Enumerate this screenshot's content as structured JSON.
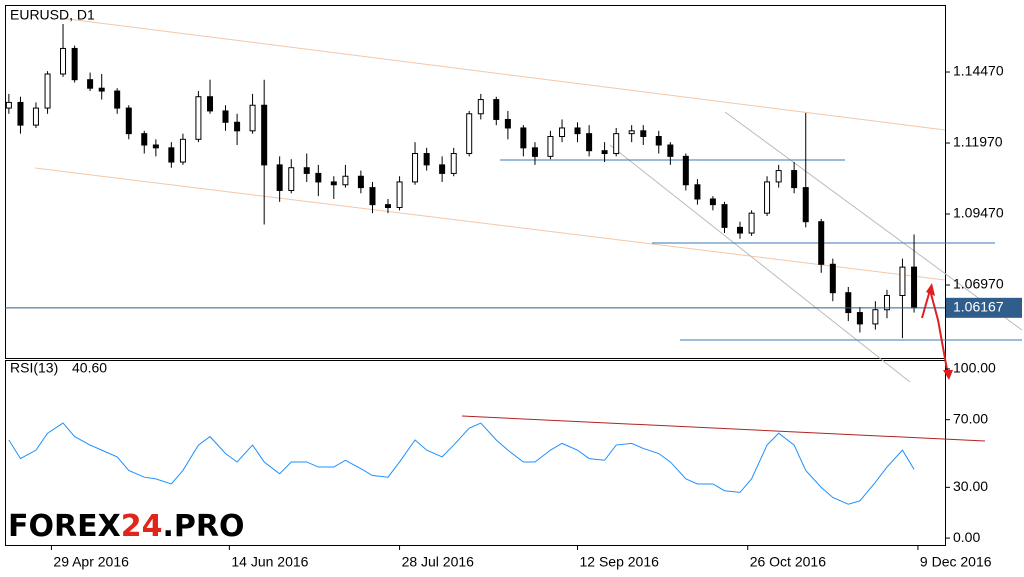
{
  "chart_data": [
    {
      "type": "candlestick",
      "title": "EURUSD, D1",
      "x": [
        "18 Apr 2016",
        "21 Apr 2016",
        "25 Apr 2016",
        "28 Apr 2016",
        "2 May 2016",
        "5 May 2016",
        "9 May 2016",
        "12 May 2016",
        "16 May 2016",
        "19 May 2016",
        "23 May 2016",
        "26 May 2016",
        "30 May 2016",
        "2 Jun 2016",
        "6 Jun 2016",
        "9 Jun 2016",
        "13 Jun 2016",
        "16 Jun 2016",
        "20 Jun 2016",
        "23 Jun 2016",
        "27 Jun 2016",
        "30 Jun 2016",
        "4 Jul 2016",
        "7 Jul 2016",
        "11 Jul 2016",
        "14 Jul 2016",
        "18 Jul 2016",
        "21 Jul 2016",
        "25 Jul 2016",
        "28 Jul 2016",
        "1 Aug 2016",
        "4 Aug 2016",
        "8 Aug 2016",
        "11 Aug 2016",
        "15 Aug 2016",
        "18 Aug 2016",
        "22 Aug 2016",
        "25 Aug 2016",
        "29 Aug 2016",
        "1 Sep 2016",
        "5 Sep 2016",
        "8 Sep 2016",
        "12 Sep 2016",
        "15 Sep 2016",
        "19 Sep 2016",
        "22 Sep 2016",
        "26 Sep 2016",
        "29 Sep 2016",
        "3 Oct 2016",
        "6 Oct 2016",
        "10 Oct 2016",
        "13 Oct 2016",
        "17 Oct 2016",
        "20 Oct 2016",
        "24 Oct 2016",
        "27 Oct 2016",
        "31 Oct 2016",
        "3 Nov 2016",
        "7 Nov 2016",
        "10 Nov 2016",
        "14 Nov 2016",
        "17 Nov 2016",
        "21 Nov 2016",
        "24 Nov 2016",
        "28 Nov 2016",
        "1 Dec 2016",
        "5 Dec 2016",
        "8 Dec 2016"
      ],
      "open": [
        1.132,
        1.134,
        1.126,
        1.132,
        1.144,
        1.153,
        1.142,
        1.139,
        1.138,
        1.132,
        1.123,
        1.119,
        1.118,
        1.113,
        1.121,
        1.136,
        1.131,
        1.127,
        1.124,
        1.133,
        1.112,
        1.103,
        1.111,
        1.109,
        1.106,
        1.105,
        1.108,
        1.104,
        1.098,
        1.097,
        1.106,
        1.116,
        1.112,
        1.109,
        1.116,
        1.13,
        1.135,
        1.128,
        1.125,
        1.118,
        1.115,
        1.122,
        1.125,
        1.123,
        1.117,
        1.116,
        1.123,
        1.124,
        1.122,
        1.119,
        1.115,
        1.105,
        1.1,
        1.098,
        1.09,
        1.088,
        1.095,
        1.106,
        1.11,
        1.104,
        1.092,
        1.077,
        1.067,
        1.06,
        1.056,
        1.061,
        1.066,
        1.076
      ],
      "high": [
        1.137,
        1.136,
        1.134,
        1.145,
        1.1616,
        1.154,
        1.1445,
        1.144,
        1.139,
        1.133,
        1.124,
        1.121,
        1.12,
        1.123,
        1.138,
        1.142,
        1.133,
        1.13,
        1.137,
        1.142,
        1.115,
        1.114,
        1.116,
        1.112,
        1.108,
        1.112,
        1.11,
        1.106,
        1.1,
        1.108,
        1.12,
        1.118,
        1.115,
        1.118,
        1.131,
        1.137,
        1.136,
        1.131,
        1.126,
        1.12,
        1.124,
        1.128,
        1.127,
        1.126,
        1.12,
        1.125,
        1.126,
        1.126,
        1.124,
        1.12,
        1.116,
        1.107,
        1.101,
        1.099,
        1.092,
        1.096,
        1.108,
        1.112,
        1.113,
        1.1303,
        1.093,
        1.079,
        1.069,
        1.062,
        1.064,
        1.068,
        1.079,
        1.0875
      ],
      "low": [
        1.13,
        1.123,
        1.125,
        1.13,
        1.143,
        1.141,
        1.138,
        1.135,
        1.13,
        1.121,
        1.116,
        1.115,
        1.111,
        1.112,
        1.12,
        1.13,
        1.124,
        1.119,
        1.123,
        1.091,
        1.099,
        1.102,
        1.106,
        1.101,
        1.1,
        1.104,
        1.102,
        1.095,
        1.095,
        1.096,
        1.105,
        1.11,
        1.106,
        1.108,
        1.115,
        1.128,
        1.126,
        1.121,
        1.115,
        1.112,
        1.114,
        1.12,
        1.12,
        1.115,
        1.113,
        1.115,
        1.12,
        1.119,
        1.116,
        1.112,
        1.103,
        1.098,
        1.096,
        1.088,
        1.086,
        1.087,
        1.094,
        1.104,
        1.102,
        1.09,
        1.074,
        1.064,
        1.057,
        1.053,
        1.054,
        1.058,
        1.051,
        1.06
      ],
      "close": [
        1.134,
        1.126,
        1.132,
        1.144,
        1.153,
        1.142,
        1.139,
        1.138,
        1.132,
        1.123,
        1.119,
        1.118,
        1.113,
        1.121,
        1.136,
        1.131,
        1.127,
        1.124,
        1.133,
        1.112,
        1.103,
        1.111,
        1.109,
        1.106,
        1.105,
        1.108,
        1.104,
        1.098,
        1.097,
        1.106,
        1.116,
        1.112,
        1.109,
        1.116,
        1.13,
        1.135,
        1.128,
        1.125,
        1.118,
        1.115,
        1.122,
        1.125,
        1.123,
        1.117,
        1.116,
        1.123,
        1.124,
        1.122,
        1.119,
        1.115,
        1.105,
        1.1,
        1.098,
        1.09,
        1.088,
        1.095,
        1.106,
        1.11,
        1.104,
        1.092,
        1.077,
        1.067,
        1.06,
        1.056,
        1.061,
        1.066,
        1.076,
        1.0617
      ],
      "xlim": [
        "17 Apr 2016",
        "16 Dec 2016"
      ],
      "ylim": [
        1.044,
        1.1683
      ],
      "yticks": [
        {
          "value": 1.1447,
          "label": "1.14470"
        },
        {
          "value": 1.1197,
          "label": "1.11970"
        },
        {
          "value": 1.0947,
          "label": "1.09470"
        },
        {
          "value": 1.0697,
          "label": "1.06970"
        }
      ],
      "last_price": {
        "value": 1.06167,
        "label": "1.06167"
      }
    },
    {
      "type": "line",
      "title": "RSI(13)",
      "last_label": "40.60",
      "color": "#1e90ff",
      "x": [
        "18 Apr 2016",
        "21 Apr 2016",
        "25 Apr 2016",
        "28 Apr 2016",
        "2 May 2016",
        "5 May 2016",
        "9 May 2016",
        "12 May 2016",
        "16 May 2016",
        "19 May 2016",
        "23 May 2016",
        "26 May 2016",
        "30 May 2016",
        "2 Jun 2016",
        "6 Jun 2016",
        "9 Jun 2016",
        "13 Jun 2016",
        "16 Jun 2016",
        "20 Jun 2016",
        "23 Jun 2016",
        "27 Jun 2016",
        "30 Jun 2016",
        "4 Jul 2016",
        "7 Jul 2016",
        "11 Jul 2016",
        "14 Jul 2016",
        "18 Jul 2016",
        "21 Jul 2016",
        "25 Jul 2016",
        "28 Jul 2016",
        "1 Aug 2016",
        "4 Aug 2016",
        "8 Aug 2016",
        "11 Aug 2016",
        "15 Aug 2016",
        "18 Aug 2016",
        "22 Aug 2016",
        "25 Aug 2016",
        "29 Aug 2016",
        "1 Sep 2016",
        "5 Sep 2016",
        "8 Sep 2016",
        "12 Sep 2016",
        "15 Sep 2016",
        "19 Sep 2016",
        "22 Sep 2016",
        "26 Sep 2016",
        "29 Sep 2016",
        "3 Oct 2016",
        "6 Oct 2016",
        "10 Oct 2016",
        "13 Oct 2016",
        "17 Oct 2016",
        "20 Oct 2016",
        "24 Oct 2016",
        "27 Oct 2016",
        "31 Oct 2016",
        "3 Nov 2016",
        "7 Nov 2016",
        "10 Nov 2016",
        "14 Nov 2016",
        "17 Nov 2016",
        "21 Nov 2016",
        "24 Nov 2016",
        "28 Nov 2016",
        "1 Dec 2016",
        "5 Dec 2016",
        "8 Dec 2016"
      ],
      "values": [
        58,
        47,
        52,
        62,
        68,
        60,
        55,
        52,
        48,
        40,
        36,
        35,
        32,
        40,
        55,
        60,
        50,
        45,
        55,
        45,
        38,
        45,
        45,
        42,
        42,
        46,
        41,
        37,
        36,
        45,
        58,
        52,
        48,
        55,
        65,
        68,
        58,
        52,
        45,
        45,
        52,
        56,
        52,
        47,
        46,
        55,
        56,
        53,
        50,
        45,
        35,
        32,
        32,
        28,
        27,
        35,
        55,
        62,
        55,
        40,
        30,
        24,
        20,
        22,
        33,
        42,
        52,
        40.6
      ],
      "xlim": [
        "17 Apr 2016",
        "16 Dec 2016"
      ],
      "ylim": [
        -4.1,
        105.3
      ],
      "yticks": [
        {
          "value": 100,
          "label": "100.00"
        },
        {
          "value": 70,
          "label": "70.00"
        },
        {
          "value": 30,
          "label": "30.00"
        },
        {
          "value": 0,
          "label": "0.00"
        }
      ],
      "xticks": [
        "29 Apr 2016",
        "14 Jun 2016",
        "28 Jul 2016",
        "12 Sep 2016",
        "26 Oct 2016",
        "9 Dec 2016"
      ]
    }
  ],
  "logo": {
    "left": "FOREX",
    "middle": "24",
    "right": ".PRO"
  }
}
